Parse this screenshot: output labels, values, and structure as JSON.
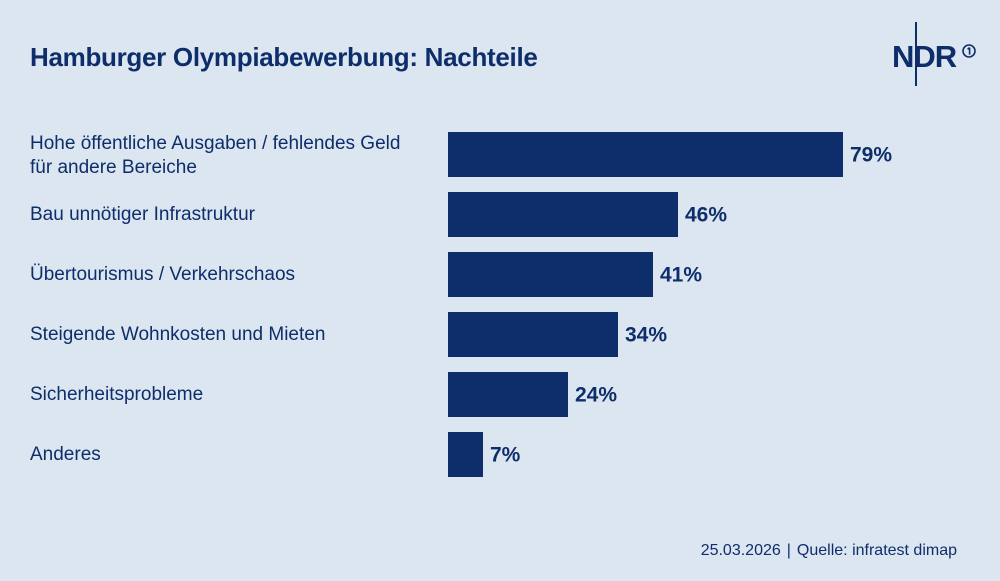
{
  "logo": {
    "text": "NDR"
  },
  "footer": {
    "date": "25.03.2026",
    "separator": "|",
    "source": "Quelle: infratest dimap"
  },
  "colors": {
    "background": "#dce6f1",
    "bar": "#0d2d6b",
    "text": "#0d2d6b"
  },
  "chart_data": {
    "type": "bar",
    "orientation": "horizontal",
    "title": "Hamburger Olympiabewerbung: Nachteile",
    "categories": [
      [
        "Hohe öffentliche Ausgaben / fehlendes Geld",
        "für andere Bereiche"
      ],
      [
        "Bau unnötiger Infrastruktur"
      ],
      [
        "Übertourismus / Verkehrschaos"
      ],
      [
        "Steigende Wohnkosten und Mieten"
      ],
      [
        "Sicherheitsprobleme"
      ],
      [
        "Anderes"
      ]
    ],
    "values": [
      79,
      46,
      41,
      34,
      24,
      7
    ],
    "value_labels": [
      "79%",
      "46%",
      "41%",
      "34%",
      "24%",
      "7%"
    ],
    "unit": "%",
    "xlim": [
      0,
      100
    ],
    "grid": false,
    "legend": "none"
  }
}
